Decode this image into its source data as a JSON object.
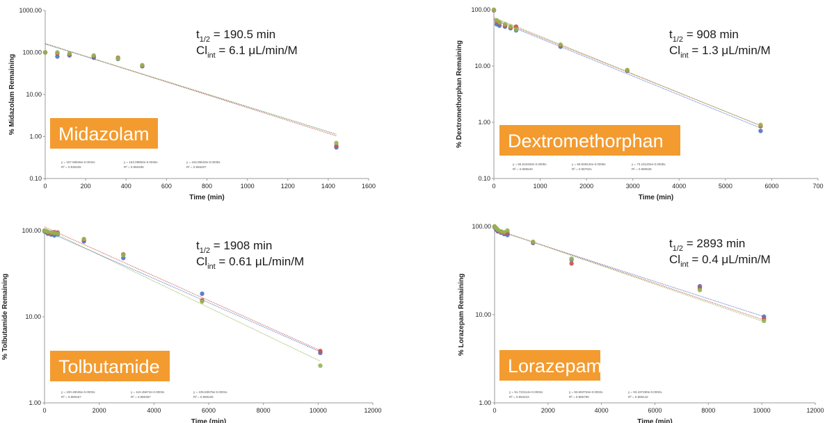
{
  "colors": {
    "blue": "#4a73c9",
    "red": "#c9504a",
    "green": "#94b552",
    "label_box": "#f39b2f",
    "axis": "#9a9a9a"
  },
  "chart_data": [
    {
      "type": "scatter",
      "name": "Midazolam",
      "xlabel": "Time (min)",
      "ylabel": "% Midazolam Remaining",
      "log_y": true,
      "xlim": [
        0,
        1600
      ],
      "ylim": [
        0.1,
        1000
      ],
      "xticks": [
        "0",
        "200",
        "400",
        "600",
        "800",
        "1000",
        "1200",
        "1400",
        "1600"
      ],
      "yticks": [
        "0.10",
        "1.00",
        "10.00",
        "100.00",
        "1000.00"
      ],
      "annotation": {
        "t_half": "190.5 min",
        "clint": "6.1 μL/min/M"
      },
      "series": [
        {
          "color": "blue",
          "x": [
            0,
            60,
            120,
            240,
            360,
            480,
            1440
          ],
          "y": [
            100,
            80,
            85,
            75,
            70,
            47,
            0.55
          ],
          "fit": {
            "a": 157.7,
            "k": 0.00343
          },
          "equation": [
            "y = 157.69845e-0.0034x",
            "R² = 0.936325"
          ]
        },
        {
          "color": "red",
          "x": [
            0,
            60,
            120,
            240,
            360,
            480,
            1440
          ],
          "y": [
            100,
            95,
            90,
            80,
            75,
            48,
            0.6
          ],
          "fit": {
            "a": 164.0,
            "k": 0.00352
          },
          "equation": [
            "y = 164.09852e-0.0035x",
            "R² = 0.950485"
          ]
        },
        {
          "color": "green",
          "x": [
            0,
            60,
            120,
            240,
            360,
            480,
            1440
          ],
          "y": [
            100,
            100,
            95,
            85,
            72,
            50,
            0.7
          ],
          "fit": {
            "a": 162.9,
            "k": 0.00345
          },
          "equation": [
            "y = 162.86533e-0.0035x",
            "R² = 0.955407"
          ]
        }
      ]
    },
    {
      "type": "scatter",
      "name": "Dextromethorphan",
      "xlabel": "Time (min)",
      "ylabel": "% Dextromethorphan Remaining",
      "log_y": true,
      "xlim": [
        0,
        7000
      ],
      "ylim": [
        0.1,
        100
      ],
      "xticks": [
        "0",
        "1000",
        "2000",
        "3000",
        "4000",
        "5000",
        "6000",
        "700"
      ],
      "yticks": [
        "0.10",
        "1.00",
        "10.00",
        "100.00"
      ],
      "annotation": {
        "t_half": "908 min",
        "clint": "1.3 μL/min/M"
      },
      "series": [
        {
          "color": "blue",
          "x": [
            0,
            60,
            120,
            240,
            360,
            480,
            1440,
            2880,
            5760
          ],
          "y": [
            98,
            55,
            52,
            50,
            47,
            43,
            22,
            8.2,
            0.7
          ],
          "fit": {
            "a": 66.6,
            "k": 0.00077
          },
          "equation": [
            "y = 66.633450e-0.0008x",
            "R² = 0.985540"
          ]
        },
        {
          "color": "red",
          "x": [
            0,
            60,
            120,
            240,
            360,
            480,
            1440,
            2880,
            5760
          ],
          "y": [
            98,
            62,
            58,
            52,
            48,
            50,
            23,
            8.3,
            0.85
          ],
          "fit": {
            "a": 69.6,
            "k": 0.00076
          },
          "equation": [
            "y = 69.608234e-0.0008x",
            "R² = 0.987921"
          ]
        },
        {
          "color": "green",
          "x": [
            0,
            60,
            120,
            240,
            360,
            480,
            1440,
            2880,
            5760
          ],
          "y": [
            100,
            65,
            60,
            55,
            50,
            45,
            24,
            8.5,
            0.9
          ],
          "fit": {
            "a": 73.2,
            "k": 0.00077
          },
          "equation": [
            "y = 73.191204e-0.0008x",
            "R² = 0.990635"
          ]
        }
      ]
    },
    {
      "type": "scatter",
      "name": "Tolbutamide",
      "xlabel": "Time (min)",
      "ylabel": "% Tolbutamide Remaining",
      "log_y": true,
      "xlim": [
        0,
        12000
      ],
      "ylim": [
        1,
        100
      ],
      "xticks": [
        "0",
        "2000",
        "4000",
        "6000",
        "8000",
        "10000",
        "12000"
      ],
      "yticks": [
        "1.00",
        "10.00",
        "100.00"
      ],
      "annotation": {
        "t_half": "1908 min",
        "clint": "0.61 μL/min/M"
      },
      "series": [
        {
          "color": "blue",
          "x": [
            0,
            60,
            120,
            240,
            360,
            480,
            1440,
            2880,
            5760,
            10080
          ],
          "y": [
            98,
            96,
            92,
            90,
            88,
            90,
            75,
            48,
            18.5,
            3.8
          ],
          "fit": {
            "a": 100.5,
            "k": 0.000322
          },
          "equation": [
            "y = 100.48045e-0.0003x",
            "R² = 0.980267"
          ]
        },
        {
          "color": "red",
          "x": [
            0,
            60,
            120,
            240,
            360,
            480,
            1440,
            2880,
            5760,
            10080
          ],
          "y": [
            100,
            98,
            95,
            93,
            96,
            95,
            78,
            53,
            15.5,
            4.0
          ],
          "fit": {
            "a": 110.5,
            "k": 0.000328
          },
          "equation": [
            "y = 110.45672e-0.0003x",
            "R² = 0.980387"
          ]
        },
        {
          "color": "green",
          "x": [
            0,
            60,
            120,
            240,
            360,
            480,
            1440,
            2880,
            5760,
            10080
          ],
          "y": [
            100,
            99,
            97,
            95,
            94,
            92,
            80,
            52,
            15,
            2.7
          ],
          "fit": {
            "a": 105.8,
            "k": 0.000352
          },
          "equation": [
            "y = 105.83576e-0.0004x",
            "R² = 0.990226"
          ]
        }
      ]
    },
    {
      "type": "scatter",
      "name": "Lorazepam",
      "xlabel": "Time (min)",
      "ylabel": "% Lorazepam Remaining",
      "log_y": true,
      "xlim": [
        0,
        12000
      ],
      "ylim": [
        1,
        100
      ],
      "xticks": [
        "0",
        "2000",
        "4000",
        "6000",
        "8000",
        "10000",
        "12000"
      ],
      "yticks": [
        "1.00",
        "10.00",
        "100.00"
      ],
      "annotation": {
        "t_half": "2893 min",
        "clint": "0.4 μL/min/M"
      },
      "series": [
        {
          "color": "blue",
          "x": [
            0,
            60,
            120,
            240,
            360,
            480,
            1440,
            2880,
            7680,
            10080
          ],
          "y": [
            98,
            92,
            88,
            85,
            82,
            80,
            65,
            42,
            21,
            9.5
          ],
          "fit": {
            "a": 91.7,
            "k": 0.000225
          },
          "equation": [
            "y = 91.722112e-0.0002x",
            "R² = 0.994423"
          ]
        },
        {
          "color": "red",
          "x": [
            0,
            60,
            120,
            240,
            360,
            480,
            1440,
            2880,
            7680,
            10080
          ],
          "y": [
            100,
            95,
            90,
            87,
            84,
            85,
            66,
            38,
            20,
            9.0
          ],
          "fit": {
            "a": 93.7,
            "k": 0.000236
          },
          "equation": [
            "y = 93.693753e-0.0002x",
            "R² = 0.985780"
          ]
        },
        {
          "color": "green",
          "x": [
            0,
            60,
            120,
            240,
            360,
            480,
            1440,
            2880,
            7680,
            10080
          ],
          "y": [
            100,
            96,
            92,
            88,
            86,
            90,
            67,
            43,
            19,
            8.5
          ],
          "fit": {
            "a": 93.4,
            "k": 0.00024
          },
          "equation": [
            "y = 93.437280e-0.0002x",
            "R² = 0.989142"
          ]
        }
      ]
    }
  ]
}
